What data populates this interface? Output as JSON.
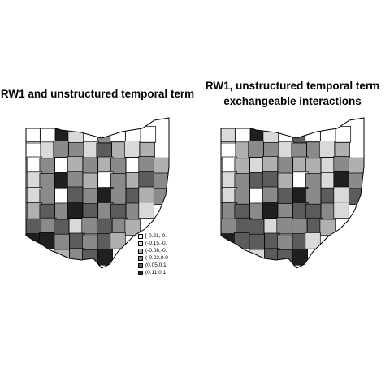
{
  "panels": [
    {
      "title": "RW1 and unstructured temporal term",
      "title_lines": [
        "RW1 and unstructured temporal term"
      ]
    },
    {
      "title": "RW1, unstructured temporal term exchangeable interactions",
      "title_lines": [
        "RW1, unstructured temporal term",
        "exchangeable interactions"
      ]
    }
  ],
  "legend": {
    "entries": [
      {
        "label": "[-0.21,-0.",
        "color": "#ffffff"
      },
      {
        "label": "(-0.15,-0.",
        "color": "#d9d9d9"
      },
      {
        "label": "(-0.08,-0.",
        "color": "#b0b0b0"
      },
      {
        "label": "(-0.02,0.0",
        "color": "#8a8a8a"
      },
      {
        "label": "(0.05,0.1",
        "color": "#5c5c5c"
      },
      {
        "label": "(0.11,0.1",
        "color": "#1f1f1f"
      }
    ]
  },
  "colors": {
    "class_1": "#ffffff",
    "class_2": "#d9d9d9",
    "class_3": "#b0b0b0",
    "class_4": "#8a8a8a",
    "class_5": "#5c5c5c",
    "class_6": "#1f1f1f",
    "border": "#000000"
  }
}
